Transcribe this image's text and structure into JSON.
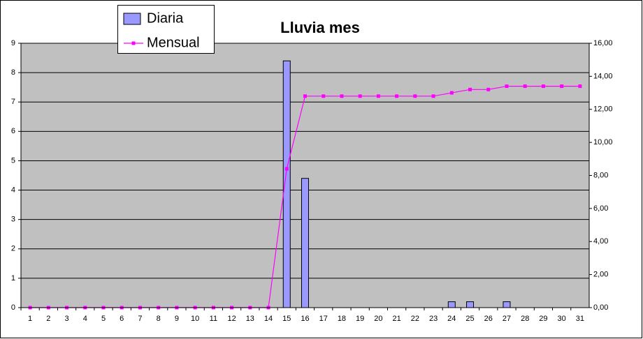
{
  "chart_data": {
    "type": "bar",
    "title": "Lluvia mes",
    "categories": [
      "1",
      "2",
      "3",
      "4",
      "5",
      "6",
      "7",
      "8",
      "9",
      "10",
      "11",
      "12",
      "13",
      "14",
      "15",
      "16",
      "17",
      "18",
      "19",
      "20",
      "21",
      "22",
      "23",
      "24",
      "25",
      "26",
      "27",
      "28",
      "29",
      "30",
      "31"
    ],
    "series": [
      {
        "name": "Diaria",
        "type": "bar",
        "color": "#9999ff",
        "axis": "y",
        "values": [
          0,
          0,
          0,
          0,
          0,
          0,
          0,
          0,
          0,
          0,
          0,
          0,
          0,
          0,
          8.4,
          4.4,
          0,
          0,
          0,
          0,
          0,
          0,
          0,
          0.2,
          0.2,
          0,
          0.2,
          0,
          0,
          0,
          0
        ]
      },
      {
        "name": "Mensual",
        "type": "line",
        "color": "#ff00ff",
        "axis": "y2",
        "values": [
          0,
          0,
          0,
          0,
          0,
          0,
          0,
          0,
          0,
          0,
          0,
          0,
          0,
          0,
          8.4,
          12.8,
          12.8,
          12.8,
          12.8,
          12.8,
          12.8,
          12.8,
          12.8,
          13.0,
          13.2,
          13.2,
          13.4,
          13.4,
          13.4,
          13.4,
          13.4
        ]
      }
    ],
    "ylim": [
      0,
      9
    ],
    "yticks": [
      0,
      1,
      2,
      3,
      4,
      5,
      6,
      7,
      8,
      9
    ],
    "y2lim": [
      0,
      16
    ],
    "y2ticks": [
      {
        "value": 0,
        "label": "0,00"
      },
      {
        "value": 2,
        "label": "2,00"
      },
      {
        "value": 4,
        "label": "4,00"
      },
      {
        "value": 6,
        "label": "6,00"
      },
      {
        "value": 8,
        "label": "8,00"
      },
      {
        "value": 10,
        "label": "10,00"
      },
      {
        "value": 12,
        "label": "12,00"
      },
      {
        "value": 14,
        "label": "14,00"
      },
      {
        "value": 16,
        "label": "16,00"
      }
    ],
    "grid": true
  }
}
